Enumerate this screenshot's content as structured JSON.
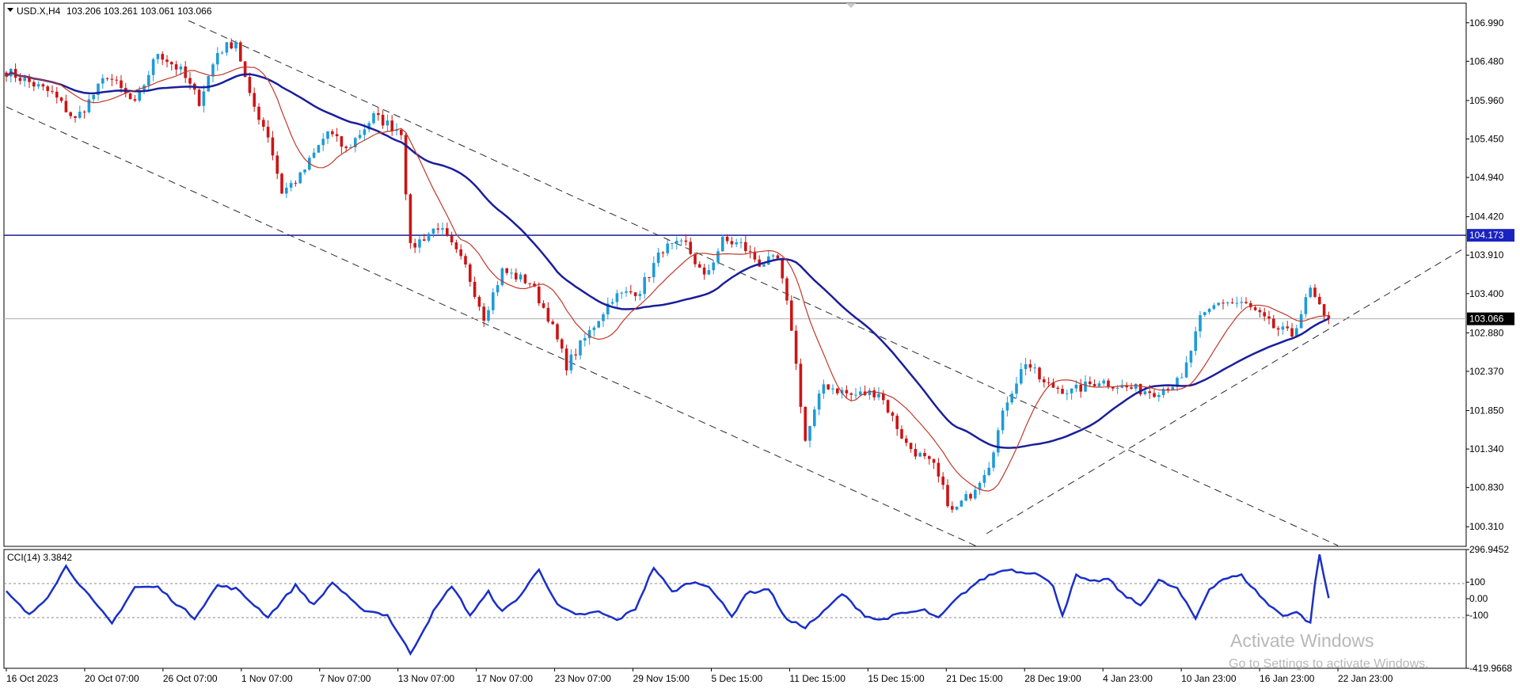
{
  "header": {
    "symbol": "USD.X,H4",
    "ohlc": "103.206 103.261 103.061 103.066",
    "indicator": "CCI(14) 3.3842"
  },
  "windows_watermark": {
    "title": "Activate Windows",
    "subtitle": "Go to Settings to activate Windows."
  },
  "colors": {
    "bull": "#1e9bd8",
    "bear": "#cc1414",
    "ma_slow": "#1a1e9a",
    "ma_fast": "#c0392b",
    "cci": "#1a2fc8",
    "hline": "#1a1e9a",
    "price_label_bg": "#000000",
    "level_label_bg": "#1a22c0"
  },
  "chart_data": [
    {
      "type": "candlestick",
      "title": "",
      "ylim": [
        100.05,
        107.25
      ],
      "y_ticks": [
        "106.990",
        "106.480",
        "105.960",
        "105.450",
        "104.940",
        "104.420",
        "103.910",
        "103.400",
        "102.880",
        "102.370",
        "101.850",
        "101.340",
        "100.830",
        "100.310"
      ],
      "x_labels": [
        "16 Oct 2023",
        "20 Oct 07:00",
        "26 Oct 07:00",
        "1 Nov 07:00",
        "7 Nov 07:00",
        "13 Nov 07:00",
        "17 Nov 07:00",
        "23 Nov 07:00",
        "29 Nov 15:00",
        "5 Dec 15:00",
        "11 Dec 15:00",
        "15 Dec 15:00",
        "21 Dec 15:00",
        "28 Dec 19:00",
        "4 Jan 23:00",
        "10 Jan 23:00",
        "16 Jan 23:00",
        "22 Jan 23:00"
      ],
      "path_anchors": [
        [
          0,
          106.35
        ],
        [
          10,
          106.05
        ],
        [
          15,
          105.7
        ],
        [
          18,
          105.95
        ],
        [
          22,
          106.3
        ],
        [
          28,
          105.9
        ],
        [
          33,
          106.6
        ],
        [
          38,
          106.35
        ],
        [
          42,
          105.95
        ],
        [
          46,
          106.6
        ],
        [
          50,
          106.75
        ],
        [
          53,
          106.0
        ],
        [
          57,
          105.5
        ],
        [
          60,
          104.75
        ],
        [
          64,
          104.95
        ],
        [
          70,
          105.55
        ],
        [
          74,
          105.3
        ],
        [
          80,
          105.75
        ],
        [
          86,
          105.55
        ],
        [
          88,
          104.0
        ],
        [
          94,
          104.3
        ],
        [
          100,
          103.75
        ],
        [
          104,
          103.1
        ],
        [
          108,
          103.7
        ],
        [
          114,
          103.55
        ],
        [
          118,
          103.1
        ],
        [
          122,
          102.45
        ],
        [
          126,
          102.8
        ],
        [
          132,
          103.35
        ],
        [
          138,
          103.45
        ],
        [
          143,
          104.0
        ],
        [
          148,
          104.05
        ],
        [
          152,
          103.6
        ],
        [
          156,
          104.1
        ],
        [
          160,
          104.05
        ],
        [
          164,
          103.8
        ],
        [
          168,
          103.85
        ],
        [
          171,
          102.95
        ],
        [
          174,
          101.45
        ],
        [
          178,
          102.2
        ],
        [
          184,
          102.05
        ],
        [
          190,
          102.1
        ],
        [
          196,
          101.4
        ],
        [
          202,
          101.1
        ],
        [
          206,
          100.5
        ],
        [
          210,
          100.75
        ],
        [
          214,
          101.15
        ],
        [
          218,
          102.0
        ],
        [
          222,
          102.5
        ],
        [
          226,
          102.2
        ],
        [
          232,
          102.1
        ],
        [
          238,
          102.25
        ],
        [
          244,
          102.15
        ],
        [
          250,
          102.1
        ],
        [
          256,
          102.25
        ],
        [
          260,
          103.05
        ],
        [
          264,
          103.3
        ],
        [
          270,
          103.25
        ],
        [
          276,
          102.95
        ],
        [
          280,
          102.85
        ],
        [
          284,
          103.45
        ],
        [
          287,
          103.07
        ]
      ],
      "last_price": 103.066,
      "horizontal_level": 104.173,
      "series": [
        {
          "name": "",
          "kind": "moving-average-slow"
        },
        {
          "name": "",
          "kind": "moving-average-fast"
        }
      ]
    },
    {
      "type": "line",
      "title": "CCI(14) 3.3842",
      "ylim": [
        -419.9668,
        296.9452
      ],
      "y_ticks": [
        "296.9452",
        "100",
        "0.00",
        "-100",
        "-419.9668"
      ],
      "current": 3.3842,
      "anchors": [
        [
          0,
          40
        ],
        [
          5,
          -100
        ],
        [
          9,
          15
        ],
        [
          13,
          195
        ],
        [
          19,
          -20
        ],
        [
          23,
          -150
        ],
        [
          28,
          70
        ],
        [
          33,
          70
        ],
        [
          37,
          -30
        ],
        [
          41,
          -115
        ],
        [
          46,
          80
        ],
        [
          50,
          60
        ],
        [
          57,
          -110
        ],
        [
          63,
          80
        ],
        [
          67,
          -40
        ],
        [
          71,
          100
        ],
        [
          77,
          -60
        ],
        [
          83,
          -100
        ],
        [
          88,
          -330
        ],
        [
          93,
          -80
        ],
        [
          97,
          80
        ],
        [
          101,
          -100
        ],
        [
          105,
          40
        ],
        [
          108,
          -80
        ],
        [
          112,
          20
        ],
        [
          116,
          180
        ],
        [
          120,
          -40
        ],
        [
          124,
          -100
        ],
        [
          129,
          -80
        ],
        [
          133,
          -130
        ],
        [
          137,
          -60
        ],
        [
          141,
          190
        ],
        [
          145,
          40
        ],
        [
          149,
          100
        ],
        [
          153,
          80
        ],
        [
          158,
          -110
        ],
        [
          161,
          30
        ],
        [
          166,
          60
        ],
        [
          170,
          -130
        ],
        [
          174,
          -170
        ],
        [
          178,
          -80
        ],
        [
          182,
          30
        ],
        [
          187,
          -100
        ],
        [
          190,
          -130
        ],
        [
          195,
          -90
        ],
        [
          200,
          -70
        ],
        [
          203,
          -120
        ],
        [
          207,
          0
        ],
        [
          211,
          90
        ],
        [
          214,
          140
        ],
        [
          218,
          180
        ],
        [
          221,
          160
        ],
        [
          224,
          160
        ],
        [
          228,
          80
        ],
        [
          230,
          -100
        ],
        [
          233,
          140
        ],
        [
          236,
          100
        ],
        [
          240,
          120
        ],
        [
          243,
          30
        ],
        [
          247,
          -40
        ],
        [
          251,
          110
        ],
        [
          255,
          60
        ],
        [
          259,
          -120
        ],
        [
          262,
          60
        ],
        [
          265,
          120
        ],
        [
          269,
          140
        ],
        [
          275,
          -40
        ],
        [
          278,
          -100
        ],
        [
          281,
          -80
        ],
        [
          284,
          -150
        ],
        [
          285,
          100
        ],
        [
          286,
          260
        ],
        [
          288,
          0
        ]
      ]
    }
  ]
}
